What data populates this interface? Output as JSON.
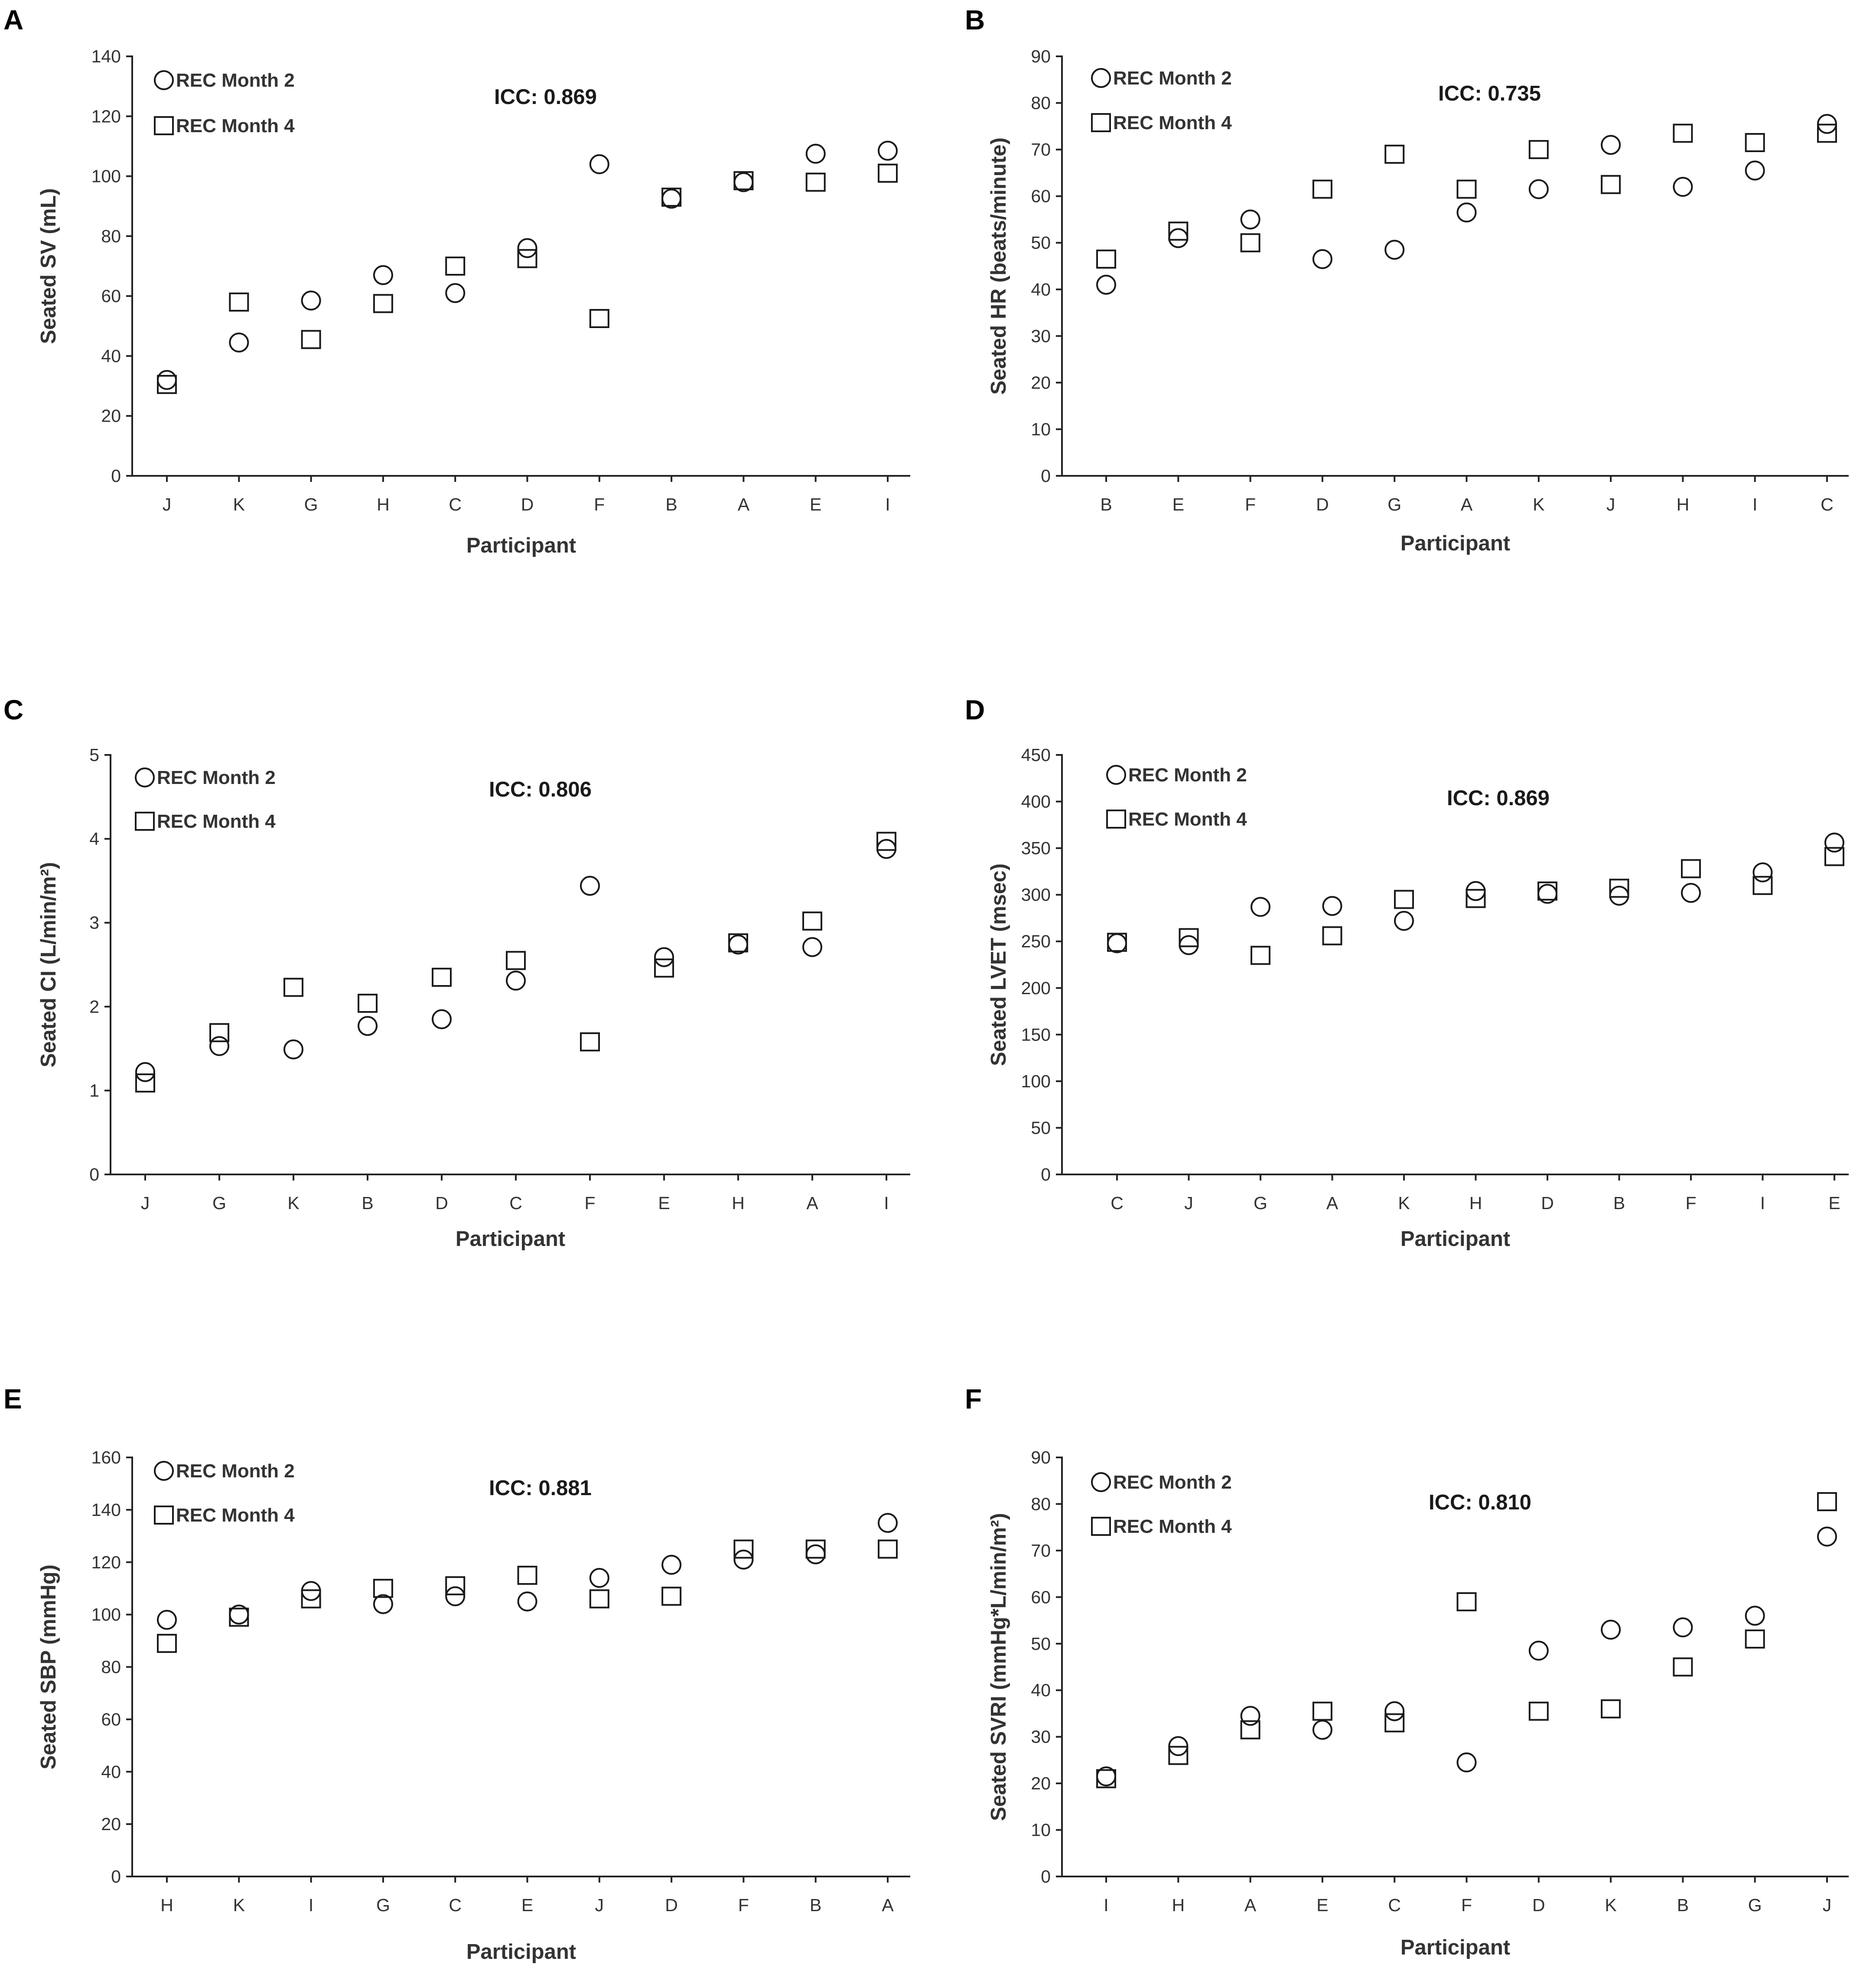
{
  "chart_data": [
    {
      "panel": "A",
      "type": "scatter",
      "title": "",
      "xlabel": "Participant",
      "ylabel": "Seated SV (mL)",
      "categories": [
        "J",
        "K",
        "G",
        "H",
        "C",
        "D",
        "F",
        "B",
        "A",
        "E",
        "I"
      ],
      "ylim": [
        0,
        140
      ],
      "yticks": [
        0,
        20,
        40,
        60,
        80,
        100,
        120,
        140
      ],
      "annotation": "ICC: 0.869",
      "legend": "top-left",
      "series": [
        {
          "name": "REC Month 2",
          "marker": "circle",
          "values": [
            32,
            44.5,
            58.5,
            67,
            61,
            76,
            104,
            92.5,
            98,
            107.5,
            108.5
          ]
        },
        {
          "name": "REC Month 4",
          "marker": "square",
          "values": [
            30.5,
            58,
            45.5,
            57.5,
            70,
            72.5,
            52.5,
            93,
            98.5,
            98,
            101
          ]
        }
      ]
    },
    {
      "panel": "B",
      "type": "scatter",
      "title": "",
      "xlabel": "Participant",
      "ylabel": "Seated HR (beats/minute)",
      "categories": [
        "B",
        "E",
        "F",
        "D",
        "G",
        "A",
        "K",
        "J",
        "H",
        "I",
        "C"
      ],
      "ylim": [
        0,
        90
      ],
      "yticks": [
        0,
        10,
        20,
        30,
        40,
        50,
        60,
        70,
        80,
        90
      ],
      "annotation": "ICC: 0.735",
      "legend": "top-left",
      "series": [
        {
          "name": "REC Month 2",
          "marker": "circle",
          "values": [
            41,
            51,
            55,
            46.5,
            48.5,
            56.5,
            61.5,
            71,
            62,
            65.5,
            75.5
          ]
        },
        {
          "name": "REC Month 4",
          "marker": "square",
          "values": [
            46.5,
            52.5,
            50,
            61.5,
            69,
            61.5,
            70,
            62.5,
            73.5,
            71.5,
            73.5
          ]
        }
      ]
    },
    {
      "panel": "C",
      "type": "scatter",
      "title": "",
      "xlabel": "Participant",
      "ylabel": "Seated CI (L/min/m²)",
      "categories": [
        "J",
        "G",
        "K",
        "B",
        "D",
        "C",
        "F",
        "E",
        "H",
        "A",
        "I"
      ],
      "ylim": [
        0,
        5
      ],
      "yticks": [
        0,
        1,
        2,
        3,
        4,
        5
      ],
      "annotation": "ICC: 0.806",
      "legend": "top-left",
      "series": [
        {
          "name": "REC Month 2",
          "marker": "circle",
          "values": [
            1.22,
            1.53,
            1.49,
            1.77,
            1.85,
            2.31,
            3.44,
            2.59,
            2.74,
            2.71,
            3.88
          ]
        },
        {
          "name": "REC Month 4",
          "marker": "square",
          "values": [
            1.09,
            1.69,
            2.23,
            2.04,
            2.35,
            2.55,
            1.58,
            2.46,
            2.76,
            3.02,
            3.97
          ]
        }
      ]
    },
    {
      "panel": "D",
      "type": "scatter",
      "title": "",
      "xlabel": "Participant",
      "ylabel": "Seated LVET (msec)",
      "categories": [
        "C",
        "J",
        "G",
        "A",
        "K",
        "H",
        "D",
        "B",
        "F",
        "I",
        "E"
      ],
      "ylim": [
        0,
        450
      ],
      "yticks": [
        0,
        50,
        100,
        150,
        200,
        250,
        300,
        350,
        400,
        450
      ],
      "annotation": "ICC: 0.869",
      "legend": "top-left",
      "series": [
        {
          "name": "REC Month 2",
          "marker": "circle",
          "values": [
            248,
            246,
            287,
            288,
            272,
            304,
            301,
            299,
            302,
            324,
            356
          ]
        },
        {
          "name": "REC Month 4",
          "marker": "square",
          "values": [
            249,
            254,
            235,
            256,
            295,
            296,
            304,
            307,
            328,
            310,
            341
          ]
        }
      ]
    },
    {
      "panel": "E",
      "type": "scatter",
      "title": "",
      "xlabel": "Participant",
      "ylabel": "Seated SBP (mmHg)",
      "categories": [
        "H",
        "K",
        "I",
        "G",
        "C",
        "E",
        "J",
        "D",
        "F",
        "B",
        "A"
      ],
      "ylim": [
        0,
        160
      ],
      "yticks": [
        0,
        20,
        40,
        60,
        80,
        100,
        120,
        140,
        160
      ],
      "annotation": "ICC: 0.881",
      "legend": "top-left",
      "series": [
        {
          "name": "REC Month 2",
          "marker": "circle",
          "values": [
            98,
            100,
            109,
            104,
            107,
            105,
            114,
            119,
            121,
            123,
            135
          ]
        },
        {
          "name": "REC Month 4",
          "marker": "square",
          "values": [
            89,
            99,
            106,
            110,
            111,
            115,
            106,
            107,
            125,
            125,
            125
          ]
        }
      ]
    },
    {
      "panel": "F",
      "type": "scatter",
      "title": "",
      "xlabel": "Participant",
      "ylabel": "Seated SVRI (mmHg*L/min/m²)",
      "categories": [
        "I",
        "H",
        "A",
        "E",
        "C",
        "F",
        "D",
        "K",
        "B",
        "G",
        "J"
      ],
      "ylim": [
        0,
        90
      ],
      "yticks": [
        0,
        10,
        20,
        30,
        40,
        50,
        60,
        70,
        80,
        90
      ],
      "annotation": "ICC: 0.810",
      "legend": "top-left",
      "series": [
        {
          "name": "REC Month 2",
          "marker": "circle",
          "values": [
            21.5,
            28,
            34.5,
            31.5,
            35.5,
            24.5,
            48.5,
            53,
            53.5,
            56,
            73
          ]
        },
        {
          "name": "REC Month 4",
          "marker": "square",
          "values": [
            21,
            26,
            31.5,
            35.5,
            33,
            59,
            35.5,
            36,
            45,
            51,
            80.5
          ]
        }
      ]
    }
  ],
  "colors": {
    "axis": "#222222",
    "marker": "#1a1a1a",
    "text": "#333333"
  }
}
